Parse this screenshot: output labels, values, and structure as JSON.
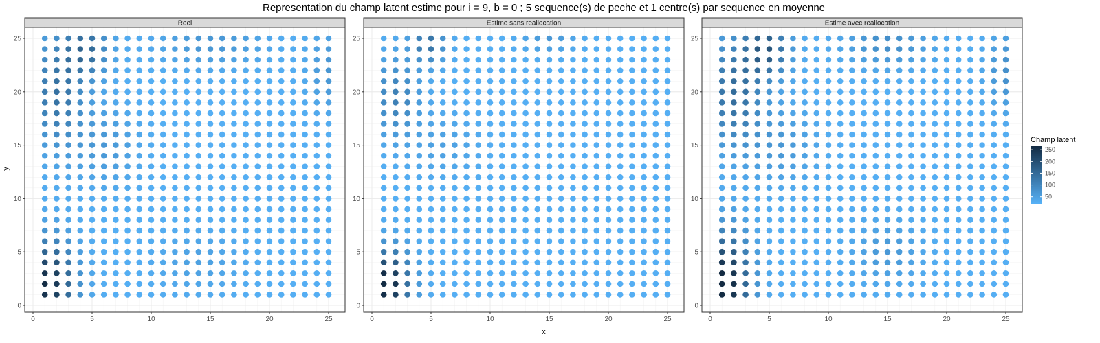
{
  "chart_data": {
    "type": "scatter",
    "title": "Representation du champ latent estime pour i = 9, b = 0 ; 5 sequence(s) de peche et 1 centre(s) par sequence en moyenne",
    "xlabel": "x",
    "ylabel": "y",
    "xlim": [
      0,
      26
    ],
    "ylim": [
      0,
      26
    ],
    "x_ticks": [
      0,
      5,
      10,
      15,
      20,
      25
    ],
    "y_ticks": [
      0,
      5,
      10,
      15,
      20,
      25
    ],
    "grid": true,
    "grid_x": [
      1,
      25
    ],
    "grid_y": [
      1,
      25
    ],
    "legend": {
      "title": "Champ latent",
      "placement": "right",
      "range": [
        20,
        265
      ],
      "breaks": [
        50,
        100,
        150,
        200,
        250
      ],
      "color_low": "#56b1f7",
      "color_high": "#132b43"
    },
    "panels": [
      {
        "label": "Reel",
        "hotspots": [
          {
            "x": 1.2,
            "y": 2.0,
            "amp": 240,
            "sx": 1.6,
            "sy": 2.8
          },
          {
            "x": 2.0,
            "y": 20.0,
            "amp": 110,
            "sx": 1.6,
            "sy": 3.5
          },
          {
            "x": 4.5,
            "y": 24.0,
            "amp": 120,
            "sx": 1.3,
            "sy": 1.8
          },
          {
            "x": 6.0,
            "y": 15.0,
            "amp": 40,
            "sx": 2.0,
            "sy": 2.5
          },
          {
            "x": 15.0,
            "y": 24.5,
            "amp": 45,
            "sx": 3.0,
            "sy": 1.5
          },
          {
            "x": 25.0,
            "y": 22.0,
            "amp": 45,
            "sx": 1.2,
            "sy": 2.5
          },
          {
            "x": 14.0,
            "y": 4.0,
            "amp": 25,
            "sx": 2.5,
            "sy": 2.0
          }
        ]
      },
      {
        "label": "Estime sans reallocation",
        "hotspots": [
          {
            "x": 1.2,
            "y": 2.0,
            "amp": 260,
            "sx": 1.4,
            "sy": 2.2
          },
          {
            "x": 2.0,
            "y": 19.5,
            "amp": 85,
            "sx": 1.4,
            "sy": 2.5
          },
          {
            "x": 4.8,
            "y": 24.5,
            "amp": 110,
            "sx": 1.0,
            "sy": 1.3
          },
          {
            "x": 15.0,
            "y": 25.0,
            "amp": 40,
            "sx": 1.5,
            "sy": 1.0
          },
          {
            "x": 6.0,
            "y": 15.0,
            "amp": 25,
            "sx": 2.0,
            "sy": 2.0
          }
        ]
      },
      {
        "label": "Estime avec reallocation",
        "hotspots": [
          {
            "x": 1.2,
            "y": 2.0,
            "amp": 265,
            "sx": 1.5,
            "sy": 3.2
          },
          {
            "x": 2.0,
            "y": 20.0,
            "amp": 120,
            "sx": 1.7,
            "sy": 3.5
          },
          {
            "x": 4.8,
            "y": 24.0,
            "amp": 150,
            "sx": 1.3,
            "sy": 1.8
          },
          {
            "x": 15.0,
            "y": 24.5,
            "amp": 60,
            "sx": 2.5,
            "sy": 1.5
          },
          {
            "x": 25.0,
            "y": 22.0,
            "amp": 55,
            "sx": 1.2,
            "sy": 2.5
          },
          {
            "x": 6.0,
            "y": 15.0,
            "amp": 40,
            "sx": 2.0,
            "sy": 2.5
          },
          {
            "x": 15.0,
            "y": 5.0,
            "amp": 40,
            "sx": 2.0,
            "sy": 2.0
          }
        ]
      }
    ],
    "base_value": 25
  }
}
